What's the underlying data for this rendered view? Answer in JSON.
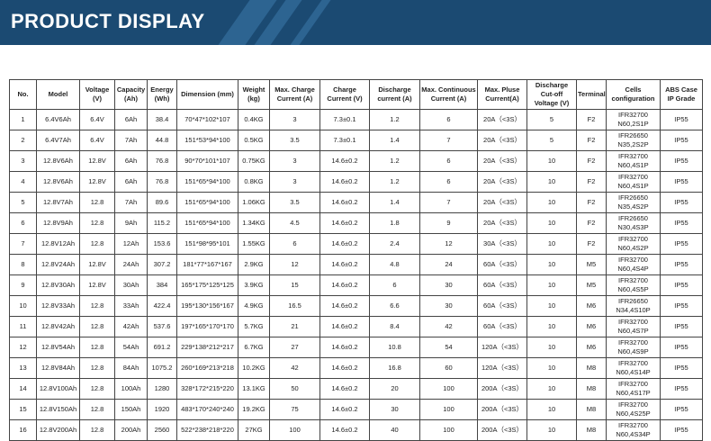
{
  "header": {
    "title": "PRODUCT DISPLAY"
  },
  "table": {
    "columns": [
      "No.",
      "Model",
      "Voltage (V)",
      "Capacity (Ah)",
      "Energy (Wh)",
      "Dimension (mm)",
      "Weight (kg)",
      "Max. Charge Current (A)",
      "Charge Current (V)",
      "Discharge current (A)",
      "Max. Continuous Current (A)",
      "Max. Pluse Current(A)",
      "Discharge Cut-off Voltage (V)",
      "Terminal",
      "Cells configuration",
      "ABS Case IP Grade"
    ],
    "rows": [
      [
        "1",
        "6.4V6Ah",
        "6.4V",
        "6Ah",
        "38.4",
        "70*47*102*107",
        "0.4KG",
        "3",
        "7.3±0.1",
        "1.2",
        "6",
        "20A（<3S）",
        "5",
        "F2",
        "IFR32700\nN60,2S1P",
        "IP55"
      ],
      [
        "2",
        "6.4V7Ah",
        "6.4V",
        "7Ah",
        "44.8",
        "151*53*94*100",
        "0.5KG",
        "3.5",
        "7.3±0.1",
        "1.4",
        "7",
        "20A（<3S）",
        "5",
        "F2",
        "IFR26650\nN35,2S2P",
        "IP55"
      ],
      [
        "3",
        "12.8V6Ah",
        "12.8V",
        "6Ah",
        "76.8",
        "90*70*101*107",
        "0.75KG",
        "3",
        "14.6±0.2",
        "1.2",
        "6",
        "20A（<3S）",
        "10",
        "F2",
        "IFR32700\nN60,4S1P",
        "IP55"
      ],
      [
        "4",
        "12.8V6Ah",
        "12.8V",
        "6Ah",
        "76.8",
        "151*65*94*100",
        "0.8KG",
        "3",
        "14.6±0.2",
        "1.2",
        "6",
        "20A（<3S）",
        "10",
        "F2",
        "IFR32700\nN60,4S1P",
        "IP55"
      ],
      [
        "5",
        "12.8V7Ah",
        "12.8",
        "7Ah",
        "89.6",
        "151*65*94*100",
        "1.06KG",
        "3.5",
        "14.6±0.2",
        "1.4",
        "7",
        "20A（<3S）",
        "10",
        "F2",
        "IFR26650\nN35,4S2P",
        "IP55"
      ],
      [
        "6",
        "12.8V9Ah",
        "12.8",
        "9Ah",
        "115.2",
        "151*65*94*100",
        "1.34KG",
        "4.5",
        "14.6±0.2",
        "1.8",
        "9",
        "20A（<3S）",
        "10",
        "F2",
        "IFR26650\nN30,4S3P",
        "IP55"
      ],
      [
        "7",
        "12.8V12Ah",
        "12.8",
        "12Ah",
        "153.6",
        "151*98*95*101",
        "1.55KG",
        "6",
        "14.6±0.2",
        "2.4",
        "12",
        "30A（<3S）",
        "10",
        "F2",
        "IFR32700\nN60,4S2P",
        "IP55"
      ],
      [
        "8",
        "12.8V24Ah",
        "12.8V",
        "24Ah",
        "307.2",
        "181*77*167*167",
        "2.9KG",
        "12",
        "14.6±0.2",
        "4.8",
        "24",
        "60A（<3S）",
        "10",
        "M5",
        "IFR32700\nN60,4S4P",
        "IP55"
      ],
      [
        "9",
        "12.8V30Ah",
        "12.8V",
        "30Ah",
        "384",
        "165*175*125*125",
        "3.9KG",
        "15",
        "14.6±0.2",
        "6",
        "30",
        "60A（<3S）",
        "10",
        "M5",
        "IFR32700\nN60,4S5P",
        "IP55"
      ],
      [
        "10",
        "12.8V33Ah",
        "12.8",
        "33Ah",
        "422.4",
        "195*130*156*167",
        "4.9KG",
        "16.5",
        "14.6±0.2",
        "6.6",
        "30",
        "60A（<3S）",
        "10",
        "M6",
        "IFR26650\nN34,4S10P",
        "IP55"
      ],
      [
        "11",
        "12.8V42Ah",
        "12.8",
        "42Ah",
        "537.6",
        "197*165*170*170",
        "5.7KG",
        "21",
        "14.6±0.2",
        "8.4",
        "42",
        "60A（<3S）",
        "10",
        "M6",
        "IFR32700\nN60,4S7P",
        "IP55"
      ],
      [
        "12",
        "12.8V54Ah",
        "12.8",
        "54Ah",
        "691.2",
        "229*138*212*217",
        "6.7KG",
        "27",
        "14.6±0.2",
        "10.8",
        "54",
        "120A（<3S）",
        "10",
        "M6",
        "IFR32700\nN60,4S9P",
        "IP55"
      ],
      [
        "13",
        "12.8V84Ah",
        "12.8",
        "84Ah",
        "1075.2",
        "260*169*213*218",
        "10.2KG",
        "42",
        "14.6±0.2",
        "16.8",
        "60",
        "120A（<3S）",
        "10",
        "M8",
        "IFR32700\nN60,4S14P",
        "IP55"
      ],
      [
        "14",
        "12.8V100Ah",
        "12.8",
        "100Ah",
        "1280",
        "328*172*215*220",
        "13.1KG",
        "50",
        "14.6±0.2",
        "20",
        "100",
        "200A（<3S）",
        "10",
        "M8",
        "IFR32700\nN60,4S17P",
        "IP55"
      ],
      [
        "15",
        "12.8V150Ah",
        "12.8",
        "150Ah",
        "1920",
        "483*170*240*240",
        "19.2KG",
        "75",
        "14.6±0.2",
        "30",
        "100",
        "200A（<3S）",
        "10",
        "M8",
        "IFR32700\nN60,4S25P",
        "IP55"
      ],
      [
        "16",
        "12.8V200Ah",
        "12.8",
        "200Ah",
        "2560",
        "522*238*218*220",
        "27KG",
        "100",
        "14.6±0.2",
        "40",
        "100",
        "200A（<3S）",
        "10",
        "M8",
        "IFR32700\nN60,4S34P",
        "IP55"
      ]
    ]
  }
}
